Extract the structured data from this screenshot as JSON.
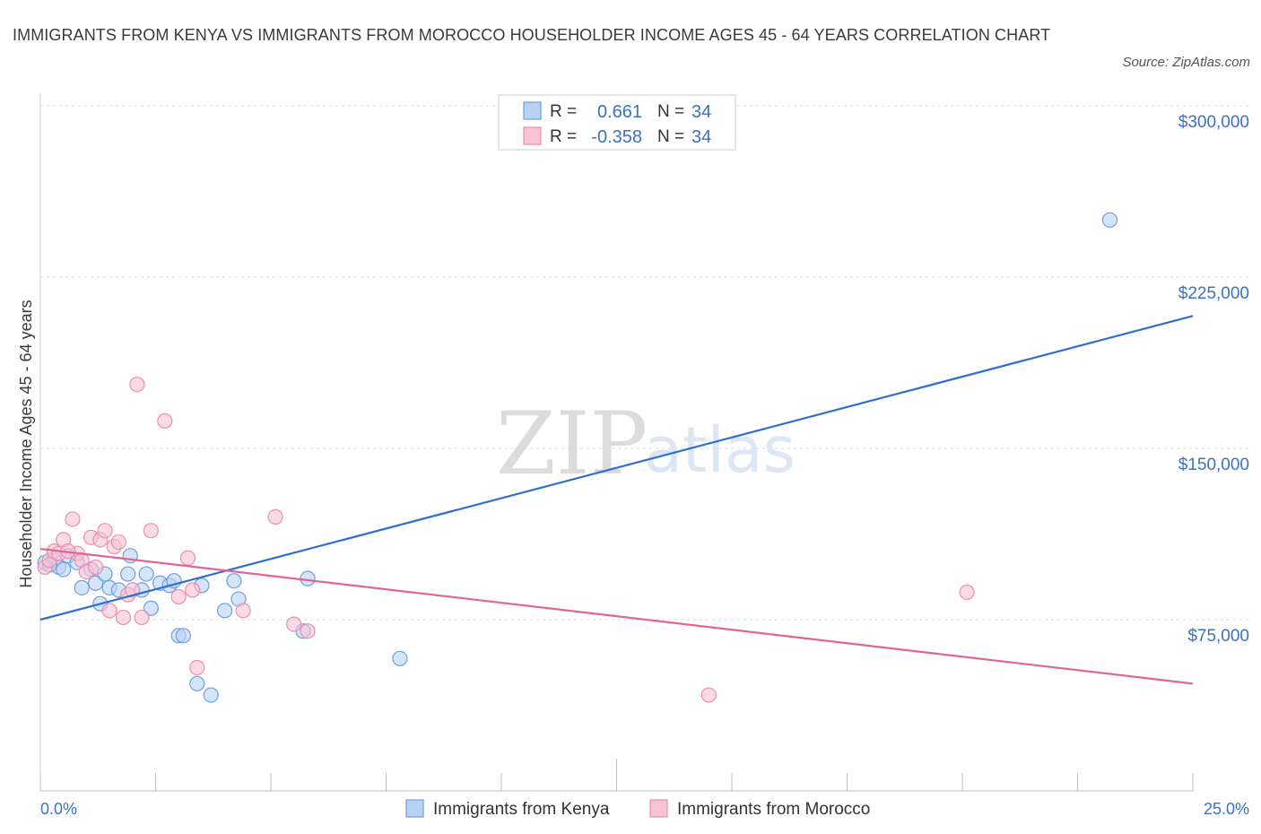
{
  "header": {
    "title": "IMMIGRANTS FROM KENYA VS IMMIGRANTS FROM MOROCCO HOUSEHOLDER INCOME AGES 45 - 64 YEARS CORRELATION CHART",
    "source": "Source: ZipAtlas.com"
  },
  "watermark": {
    "zip": "ZIP",
    "atlas": "atlas"
  },
  "colors": {
    "kenya_fill": "#b8d2f5",
    "kenya_stroke": "#6f9ee0",
    "kenya_line": "#2f6fd0",
    "morocco_fill": "#f7c3d3",
    "morocco_stroke": "#eb8fad",
    "morocco_line": "#e0649a",
    "grid": "#d8d8d8",
    "tick": "#3b72c4"
  },
  "legend": {
    "rows": [
      {
        "r_label": "R =",
        "r_value": "0.661",
        "n_label": "N =",
        "n_value": "34"
      },
      {
        "r_label": "R =",
        "r_value": "-0.358",
        "n_label": "N =",
        "n_value": "34"
      }
    ]
  },
  "chart_data": {
    "type": "scatter",
    "title": "IMMIGRANTS FROM KENYA VS IMMIGRANTS FROM MOROCCO HOUSEHOLDER INCOME AGES 45 - 64 YEARS CORRELATION CHART",
    "xlabel": "",
    "ylabel": "Householder Income Ages 45 - 64 years",
    "xlim": [
      0,
      25
    ],
    "ylim": [
      0,
      300000
    ],
    "x_tick_labels": [
      "0.0%",
      "25.0%"
    ],
    "y_ticks": [
      75000,
      150000,
      225000,
      300000
    ],
    "y_tick_labels": [
      "$75,000",
      "$150,000",
      "$225,000",
      "$300,000"
    ],
    "grid": "horizontal dashed",
    "legend_position": "bottom-center",
    "series": [
      {
        "name": "Immigrants from Kenya",
        "points": [
          [
            0.1,
            100000
          ],
          [
            0.3,
            101000
          ],
          [
            0.4,
            98000
          ],
          [
            0.5,
            97000
          ],
          [
            0.6,
            103000
          ],
          [
            0.8,
            100000
          ],
          [
            0.9,
            89000
          ],
          [
            1.1,
            97000
          ],
          [
            1.2,
            91000
          ],
          [
            1.3,
            82000
          ],
          [
            1.4,
            95000
          ],
          [
            1.5,
            89000
          ],
          [
            1.7,
            88000
          ],
          [
            1.9,
            95000
          ],
          [
            1.95,
            103000
          ],
          [
            2.2,
            88000
          ],
          [
            2.3,
            95000
          ],
          [
            2.4,
            80000
          ],
          [
            2.6,
            91000
          ],
          [
            2.8,
            90000
          ],
          [
            2.9,
            92000
          ],
          [
            3.0,
            68000
          ],
          [
            3.1,
            68000
          ],
          [
            3.4,
            47000
          ],
          [
            3.5,
            90000
          ],
          [
            3.7,
            42000
          ],
          [
            4.0,
            79000
          ],
          [
            4.2,
            92000
          ],
          [
            4.3,
            84000
          ],
          [
            5.7,
            70000
          ],
          [
            5.8,
            93000
          ],
          [
            7.8,
            58000
          ],
          [
            23.2,
            250000
          ],
          [
            0.2,
            99000
          ]
        ],
        "trend": {
          "x": [
            0,
            25
          ],
          "y": [
            75000,
            208000
          ]
        }
      },
      {
        "name": "Immigrants from Morocco",
        "points": [
          [
            0.1,
            98000
          ],
          [
            0.2,
            101000
          ],
          [
            0.3,
            105000
          ],
          [
            0.4,
            104000
          ],
          [
            0.5,
            110000
          ],
          [
            0.7,
            119000
          ],
          [
            0.8,
            104000
          ],
          [
            0.9,
            101000
          ],
          [
            1.0,
            96000
          ],
          [
            1.1,
            111000
          ],
          [
            1.2,
            98000
          ],
          [
            1.3,
            110000
          ],
          [
            1.4,
            114000
          ],
          [
            1.5,
            79000
          ],
          [
            1.6,
            107000
          ],
          [
            1.7,
            109000
          ],
          [
            1.8,
            76000
          ],
          [
            1.9,
            86000
          ],
          [
            2.0,
            88000
          ],
          [
            2.1,
            178000
          ],
          [
            2.2,
            76000
          ],
          [
            2.4,
            114000
          ],
          [
            2.7,
            162000
          ],
          [
            3.0,
            85000
          ],
          [
            3.2,
            102000
          ],
          [
            3.3,
            88000
          ],
          [
            3.4,
            54000
          ],
          [
            4.4,
            79000
          ],
          [
            5.1,
            120000
          ],
          [
            5.5,
            73000
          ],
          [
            5.8,
            70000
          ],
          [
            14.5,
            42000
          ],
          [
            20.1,
            87000
          ],
          [
            0.6,
            105000
          ]
        ],
        "trend": {
          "x": [
            0,
            25
          ],
          "y": [
            106000,
            47000
          ]
        }
      }
    ]
  }
}
